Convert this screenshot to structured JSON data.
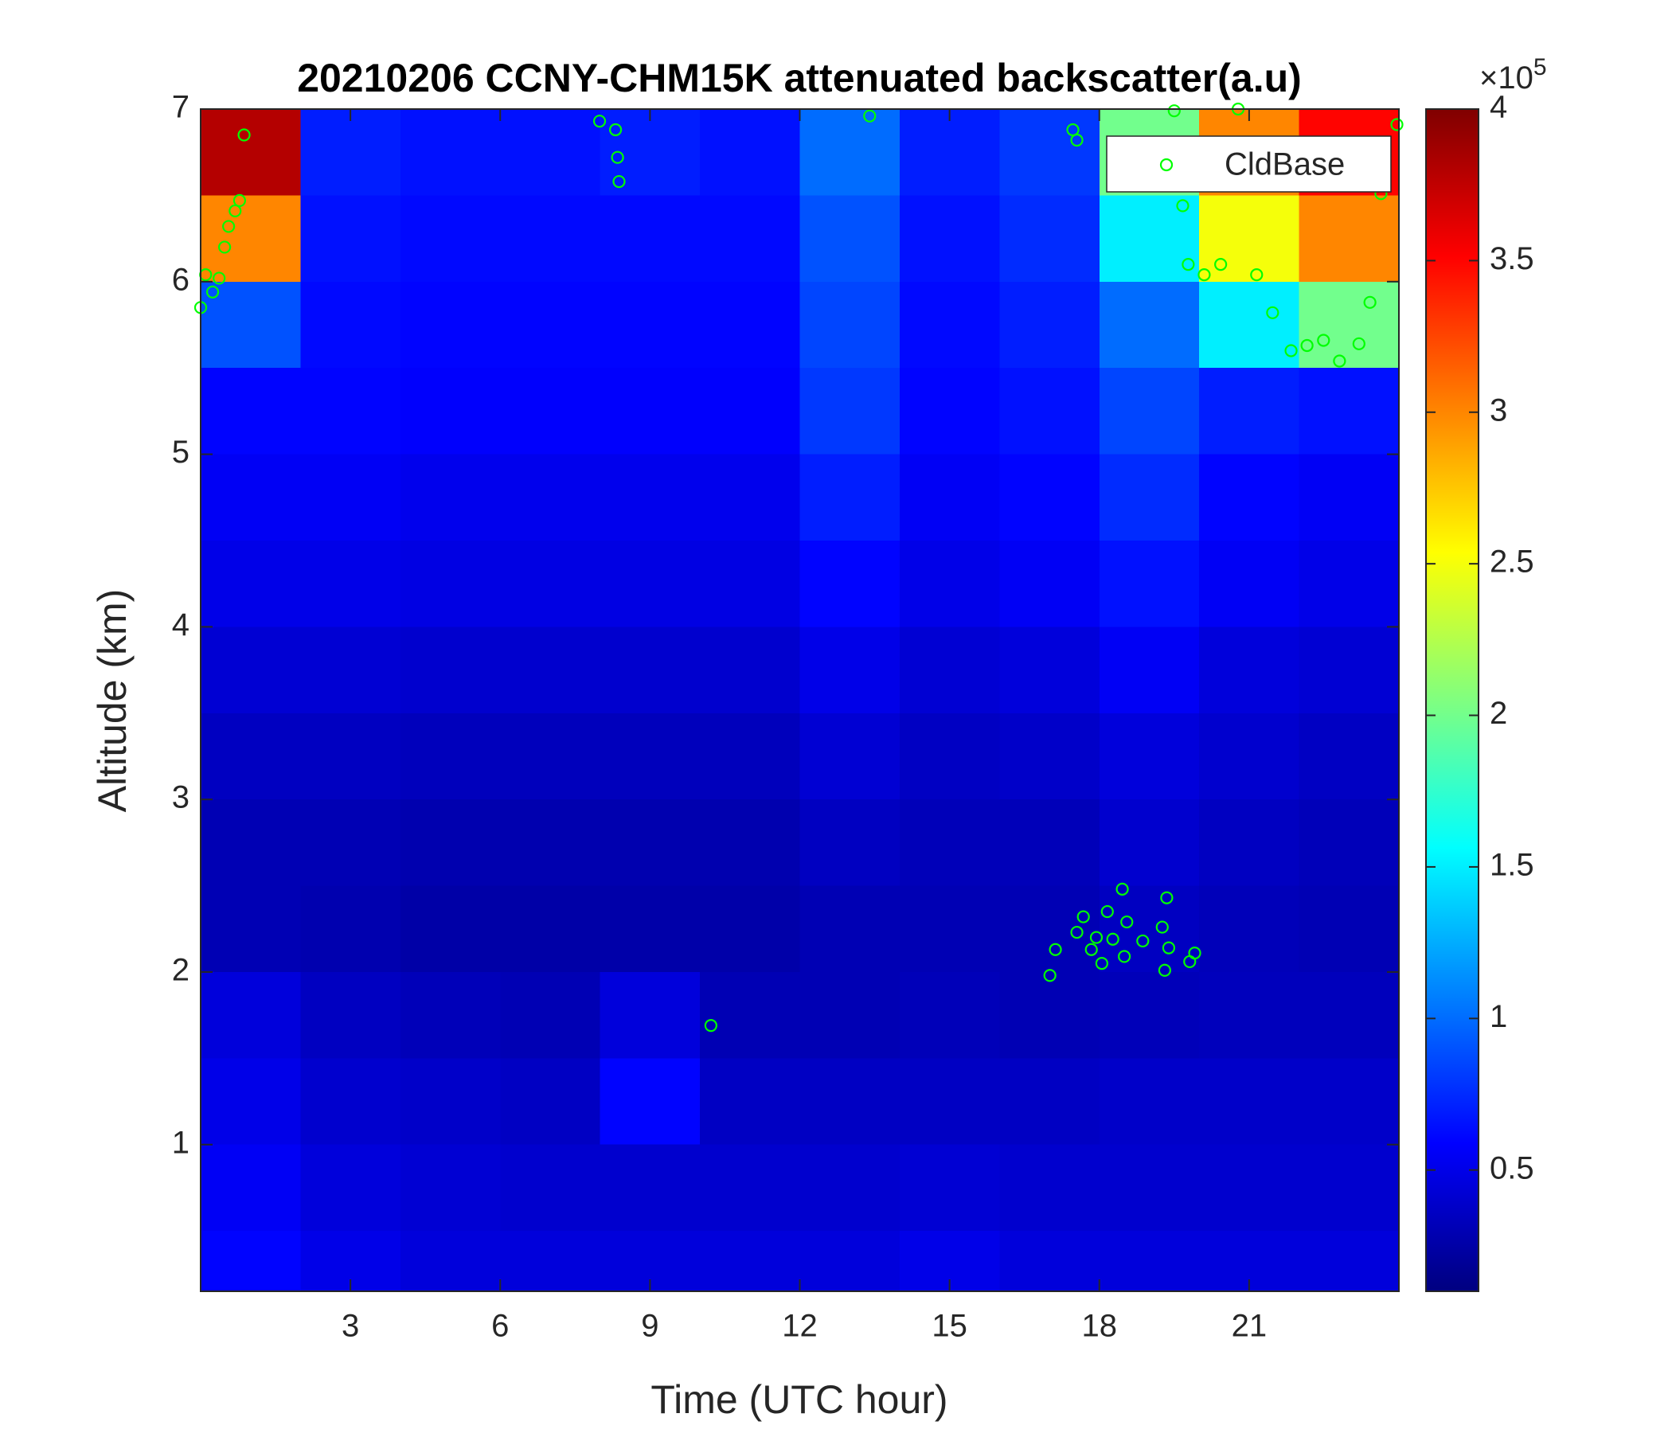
{
  "chart_data": {
    "type": "heatmap",
    "title": "20210206 CCNY-CHM15K attenuated backscatter(a.u)",
    "xlabel": "Time (UTC hour)",
    "ylabel": "Altitude (km)",
    "xlim": [
      0,
      24
    ],
    "xticks": [
      3,
      6,
      9,
      12,
      15,
      18,
      21
    ],
    "ylim": [
      0.15,
      7
    ],
    "yticks": [
      1,
      2,
      3,
      4,
      5,
      6,
      7
    ],
    "x_bins": [
      0,
      2,
      4,
      6,
      8,
      10,
      12,
      14,
      16,
      18,
      20,
      22,
      24
    ],
    "y_bins": [
      0.15,
      0.5,
      1,
      1.5,
      2,
      2.5,
      3,
      3.5,
      4,
      4.5,
      5,
      5.5,
      6,
      6.5,
      7
    ],
    "z": [
      [
        0.6,
        0.5,
        0.45,
        0.45,
        0.45,
        0.45,
        0.45,
        0.5,
        0.45,
        0.45,
        0.45,
        0.45
      ],
      [
        0.55,
        0.45,
        0.42,
        0.4,
        0.4,
        0.4,
        0.4,
        0.42,
        0.4,
        0.4,
        0.4,
        0.4
      ],
      [
        0.5,
        0.4,
        0.38,
        0.36,
        0.6,
        0.36,
        0.36,
        0.36,
        0.36,
        0.38,
        0.38,
        0.38
      ],
      [
        0.45,
        0.35,
        0.32,
        0.3,
        0.45,
        0.3,
        0.3,
        0.32,
        0.3,
        0.32,
        0.33,
        0.33
      ],
      [
        0.3,
        0.28,
        0.25,
        0.25,
        0.26,
        0.26,
        0.3,
        0.3,
        0.3,
        0.35,
        0.32,
        0.3
      ],
      [
        0.3,
        0.3,
        0.28,
        0.28,
        0.28,
        0.28,
        0.35,
        0.32,
        0.32,
        0.4,
        0.35,
        0.32
      ],
      [
        0.35,
        0.35,
        0.33,
        0.33,
        0.33,
        0.33,
        0.42,
        0.36,
        0.38,
        0.45,
        0.4,
        0.36
      ],
      [
        0.42,
        0.42,
        0.4,
        0.4,
        0.4,
        0.4,
        0.5,
        0.42,
        0.45,
        0.55,
        0.45,
        0.42
      ],
      [
        0.5,
        0.5,
        0.48,
        0.48,
        0.48,
        0.48,
        0.6,
        0.5,
        0.55,
        0.65,
        0.55,
        0.5
      ],
      [
        0.55,
        0.55,
        0.52,
        0.52,
        0.52,
        0.52,
        0.7,
        0.55,
        0.6,
        0.75,
        0.6,
        0.55
      ],
      [
        0.6,
        0.6,
        0.58,
        0.58,
        0.58,
        0.58,
        0.8,
        0.6,
        0.65,
        0.85,
        0.7,
        0.65
      ],
      [
        0.9,
        0.62,
        0.6,
        0.6,
        0.6,
        0.6,
        0.85,
        0.62,
        0.7,
        1.0,
        1.5,
        2.0
      ],
      [
        3.0,
        0.65,
        0.62,
        0.62,
        0.62,
        0.62,
        0.9,
        0.65,
        0.75,
        1.5,
        2.5,
        3.0
      ],
      [
        3.8,
        0.7,
        0.65,
        0.65,
        0.7,
        0.65,
        1.0,
        0.7,
        0.8,
        2.0,
        3.0,
        3.5
      ]
    ],
    "colormap": "jet",
    "clim": [
      0.1,
      4
    ],
    "cticks": [
      0.5,
      1,
      1.5,
      2,
      2.5,
      3,
      3.5,
      4
    ],
    "colorbar_multiplier": "×10",
    "colorbar_exponent": "5",
    "legend": "northeast",
    "overlay": {
      "type": "scatter",
      "series": [
        {
          "name": "CldBase",
          "color": "#00ff00",
          "x": [
            0.0,
            0.1,
            0.24,
            0.37,
            0.48,
            0.56,
            0.69,
            0.78,
            0.87,
            7.99,
            8.31,
            8.35,
            8.38,
            13.4,
            17.47,
            17.55,
            19.5,
            20.78,
            19.67,
            19.78,
            20.1,
            20.43,
            21.15,
            21.47,
            21.84,
            22.16,
            22.49,
            22.81,
            23.2,
            23.42,
            23.64,
            23.96,
            10.22,
            17.01,
            17.12,
            17.55,
            17.68,
            17.84,
            17.94,
            18.05,
            18.16,
            18.27,
            18.46,
            18.5,
            18.55,
            18.87,
            19.26,
            19.35,
            19.31,
            19.39,
            19.81,
            19.91
          ],
          "y": [
            5.85,
            6.04,
            5.94,
            6.02,
            6.2,
            6.32,
            6.41,
            6.47,
            6.85,
            6.93,
            6.88,
            6.72,
            6.58,
            6.96,
            6.88,
            6.82,
            6.99,
            7.0,
            6.44,
            6.1,
            6.04,
            6.1,
            6.04,
            5.82,
            5.6,
            5.63,
            5.66,
            5.54,
            5.64,
            5.88,
            6.51,
            6.91,
            1.69,
            1.98,
            2.13,
            2.23,
            2.32,
            2.13,
            2.2,
            2.05,
            2.35,
            2.19,
            2.48,
            2.09,
            2.29,
            2.18,
            2.26,
            2.43,
            2.01,
            2.14,
            2.06,
            2.11
          ]
        }
      ]
    }
  }
}
